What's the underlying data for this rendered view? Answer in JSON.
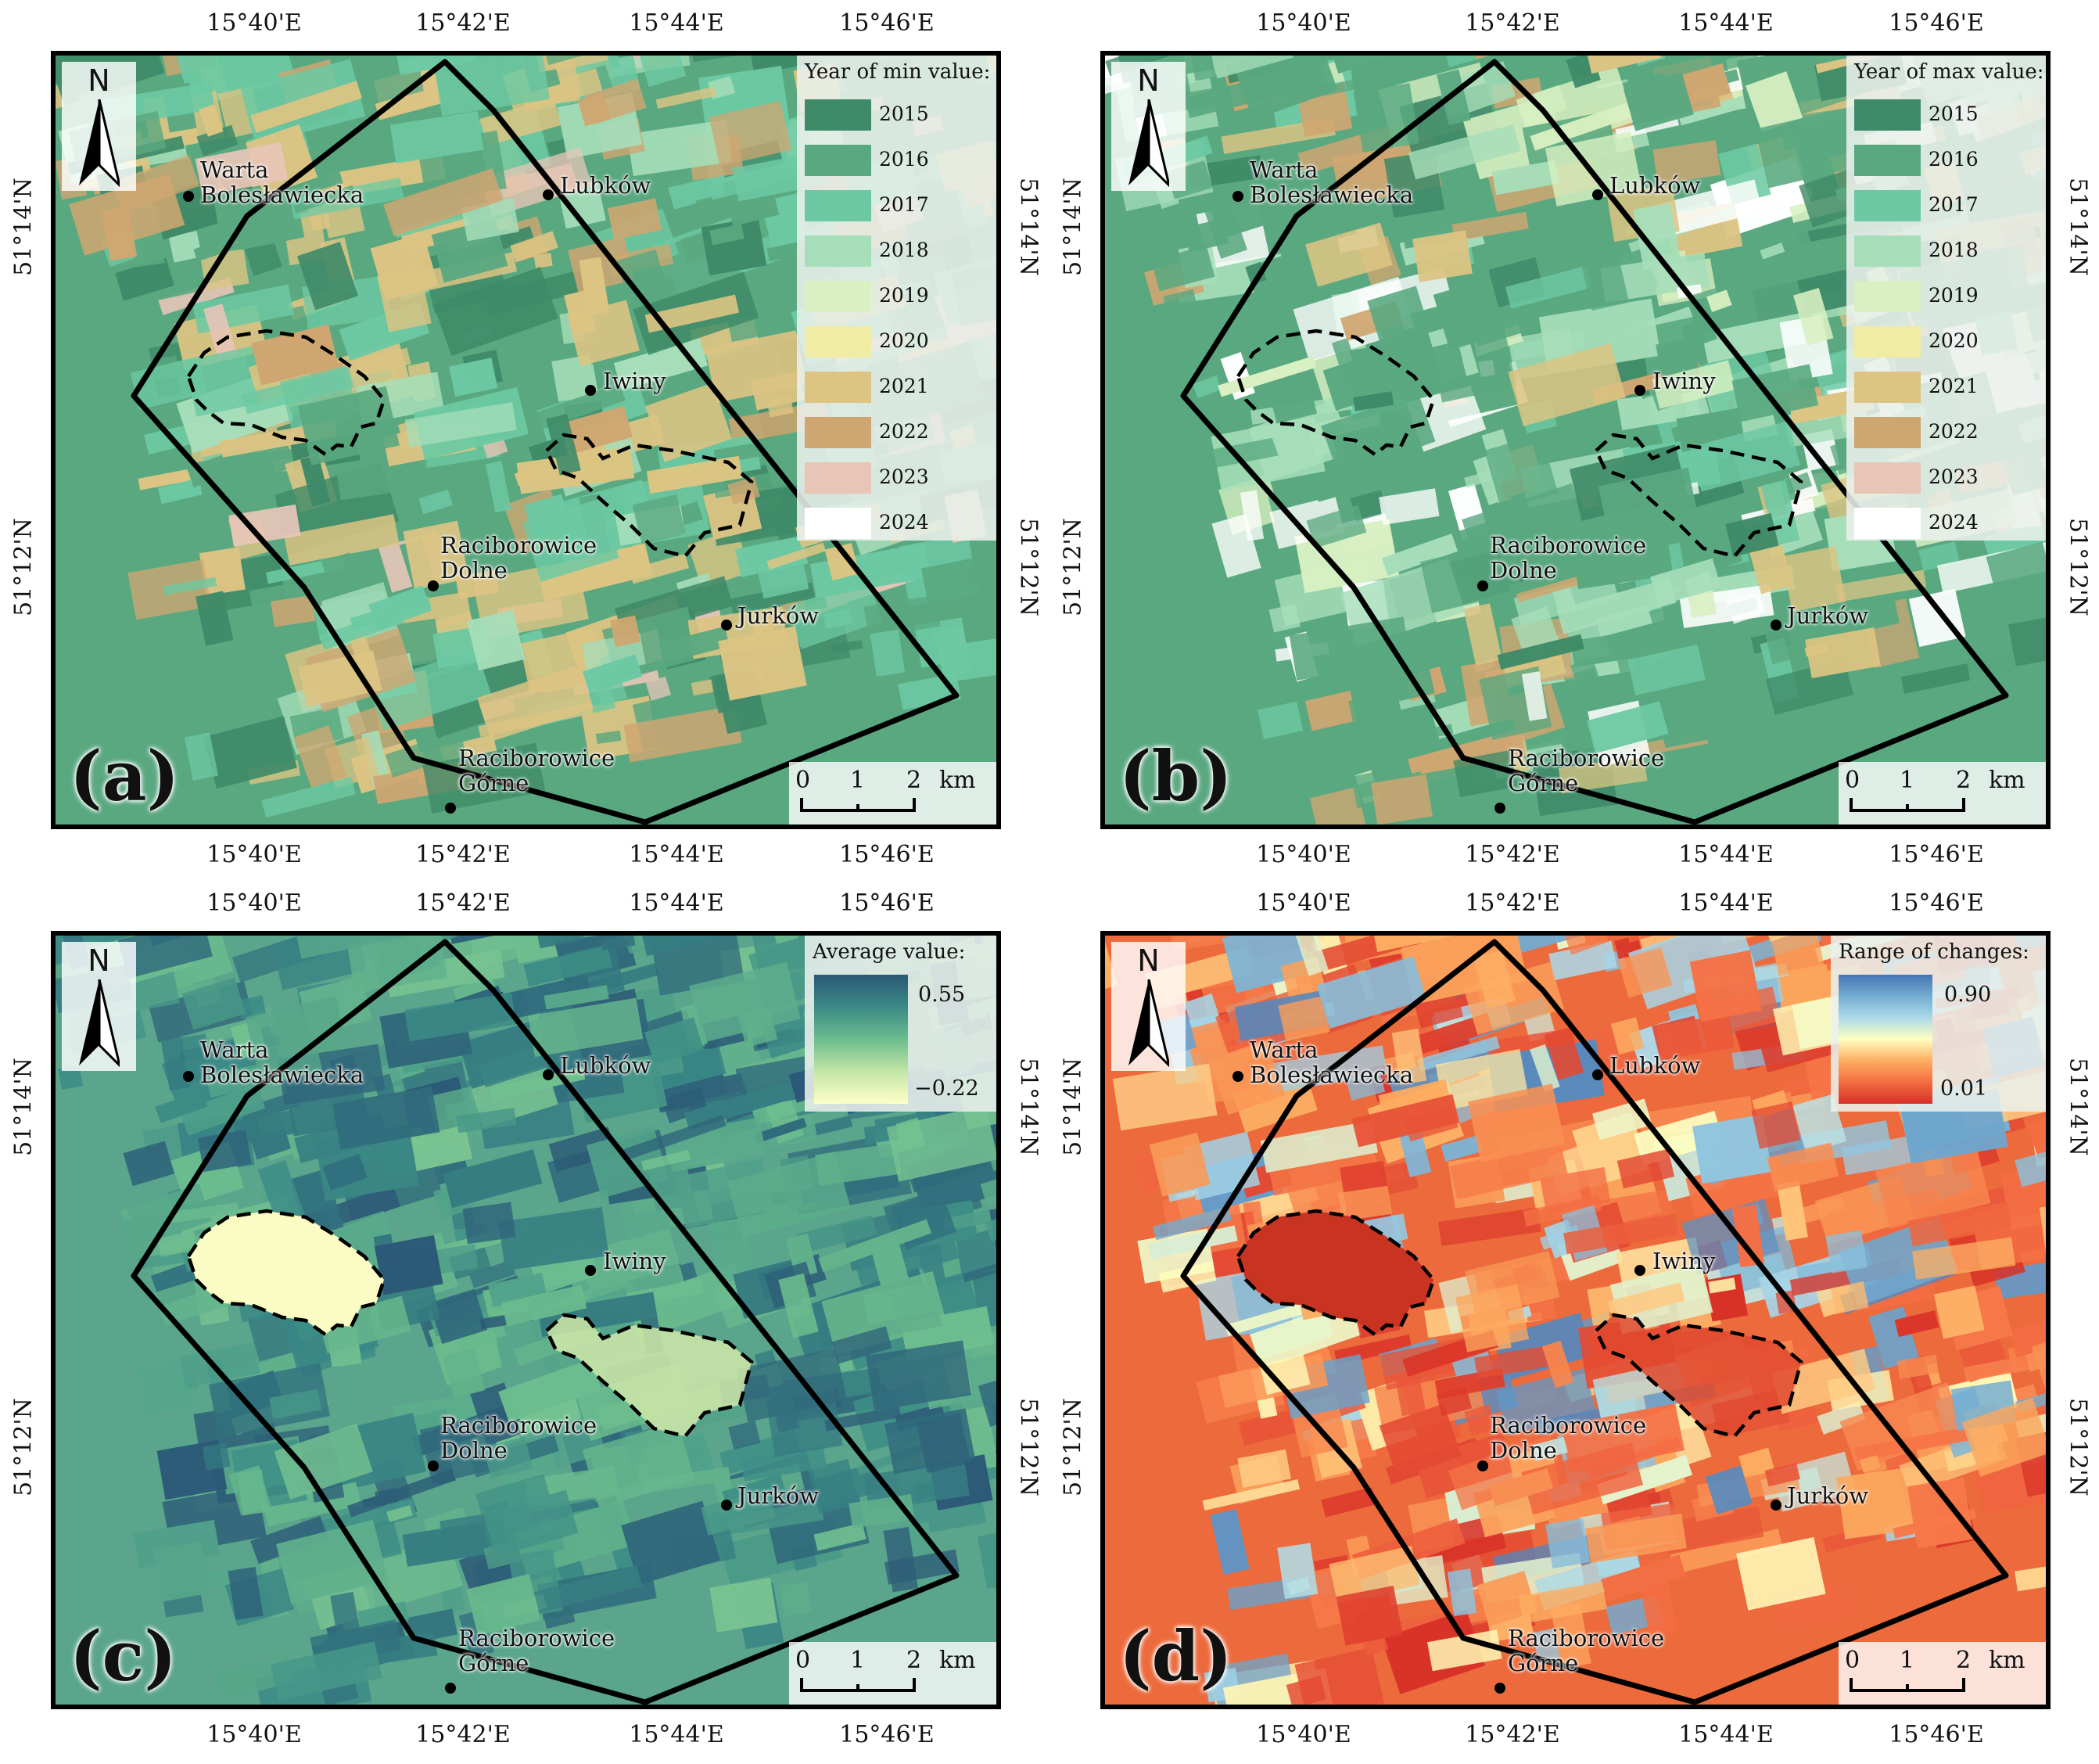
{
  "ticks": {
    "lon": [
      "15°40'E",
      "15°42'E",
      "15°44'E",
      "15°46'E"
    ],
    "lat": [
      "51°14'N",
      "51°12'N"
    ]
  },
  "places": [
    {
      "id": "warta",
      "lines": [
        "Warta",
        "Bolesławiecka"
      ]
    },
    {
      "id": "lubkow",
      "lines": [
        "Lubków"
      ]
    },
    {
      "id": "iwiny",
      "lines": [
        "Iwiny"
      ]
    },
    {
      "id": "raciborowice-dolne",
      "lines": [
        "Raciborowice",
        "Dolne"
      ]
    },
    {
      "id": "jurkow",
      "lines": [
        "Jurków"
      ]
    },
    {
      "id": "raciborowice-gorne",
      "lines": [
        "Raciborowice",
        "Górne"
      ]
    }
  ],
  "north_label": "N",
  "scale": {
    "ticks": [
      "0",
      "1",
      "2"
    ],
    "unit": "km"
  },
  "panels": [
    {
      "id": "a",
      "label": "(a)",
      "legend_title": "Year of min value:",
      "legend_type": "categorical"
    },
    {
      "id": "b",
      "label": "(b)",
      "legend_title": "Year of max value:",
      "legend_type": "categorical"
    },
    {
      "id": "c",
      "label": "(c)",
      "legend_title": "Average value:",
      "legend_type": "continuous",
      "max_label": "0.55",
      "min_label": "−0.22"
    },
    {
      "id": "d",
      "label": "(d)",
      "legend_title": "Range of changes:",
      "legend_type": "continuous",
      "max_label": "0.90",
      "min_label": "0.01"
    }
  ],
  "year_classes": [
    {
      "year": "2015",
      "color": "#3f8a68"
    },
    {
      "year": "2016",
      "color": "#5aa880"
    },
    {
      "year": "2017",
      "color": "#6cc9a3"
    },
    {
      "year": "2018",
      "color": "#a6deb9"
    },
    {
      "year": "2019",
      "color": "#d8f0c2"
    },
    {
      "year": "2020",
      "color": "#f0eca4"
    },
    {
      "year": "2021",
      "color": "#dcc483"
    },
    {
      "year": "2022",
      "color": "#cfa671"
    },
    {
      "year": "2023",
      "color": "#e7c5b7"
    },
    {
      "year": "2024",
      "color": "#ffffff"
    }
  ],
  "colors": {
    "avg_ramp": [
      "#ffffc8",
      "#c4e6a6",
      "#6cbd8e",
      "#3a8a86",
      "#2b5876"
    ],
    "range_ramp": [
      "#d73027",
      "#f46d43",
      "#fdae61",
      "#ffffbf",
      "#abd9e9",
      "#74add1",
      "#4575b4"
    ]
  }
}
